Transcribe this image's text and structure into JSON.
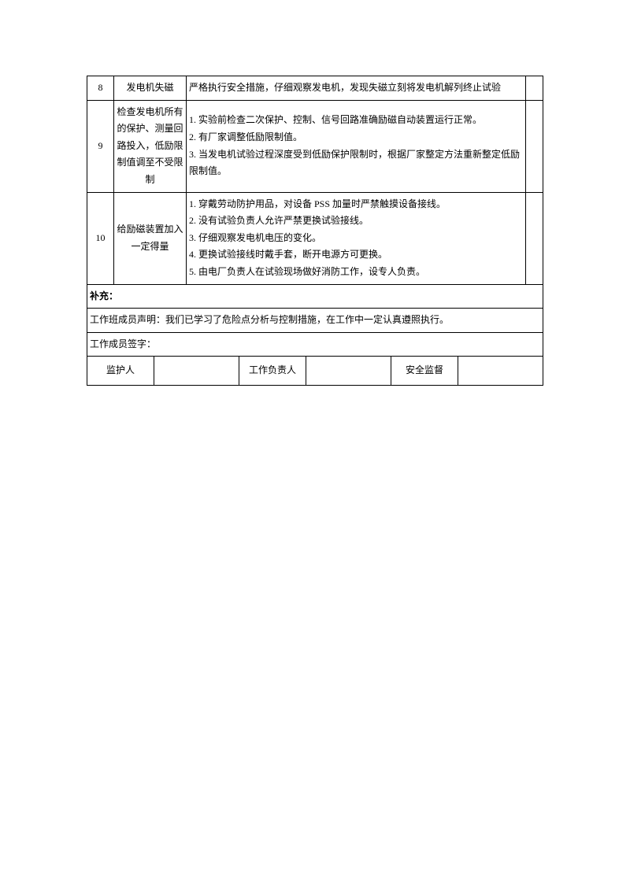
{
  "rows": [
    {
      "index": "8",
      "title": "发电机失磁",
      "content": "严格执行安全措施，仔细观察发电机，发现失磁立刻将发电机解列终止试验"
    },
    {
      "index": "9",
      "title": "检查发电机所有的保护、测量回路投入，低励限制值调至不受限制",
      "content": "1. 实验前检查二次保护、控制、信号回路准确励磁自动装置运行正常。\n2. 有厂家调整低励限制值。\n3. 当发电机试验过程深度受到低励保护限制时，根据厂家整定方法重新整定低励限制值。"
    },
    {
      "index": "10",
      "title": "给励磁装置加入一定得量",
      "content": "1. 穿戴劳动防护用品，对设备 PSS 加量时严禁触摸设备接线。\n2. 没有试验负责人允许严禁更换试验接线。\n3. 仔细观察发电机电压的变化。\n4. 更换试验接线时戴手套，断开电源方可更换。\n5. 由电厂负责人在试验现场做好消防工作，设专人负责。"
    }
  ],
  "supplement_label": "补充：",
  "declaration": "工作班成员声明：我们已学习了危险点分析与控制措施，在工作中一定认真遵照执行。",
  "signature_label": "工作成员签字：",
  "sig": {
    "supervisor": "监护人",
    "leader": "工作负责人",
    "safety": "安全监督"
  },
  "colors": {
    "text": "#000000",
    "background": "#ffffff",
    "border": "#000000"
  },
  "fontsize": 12
}
